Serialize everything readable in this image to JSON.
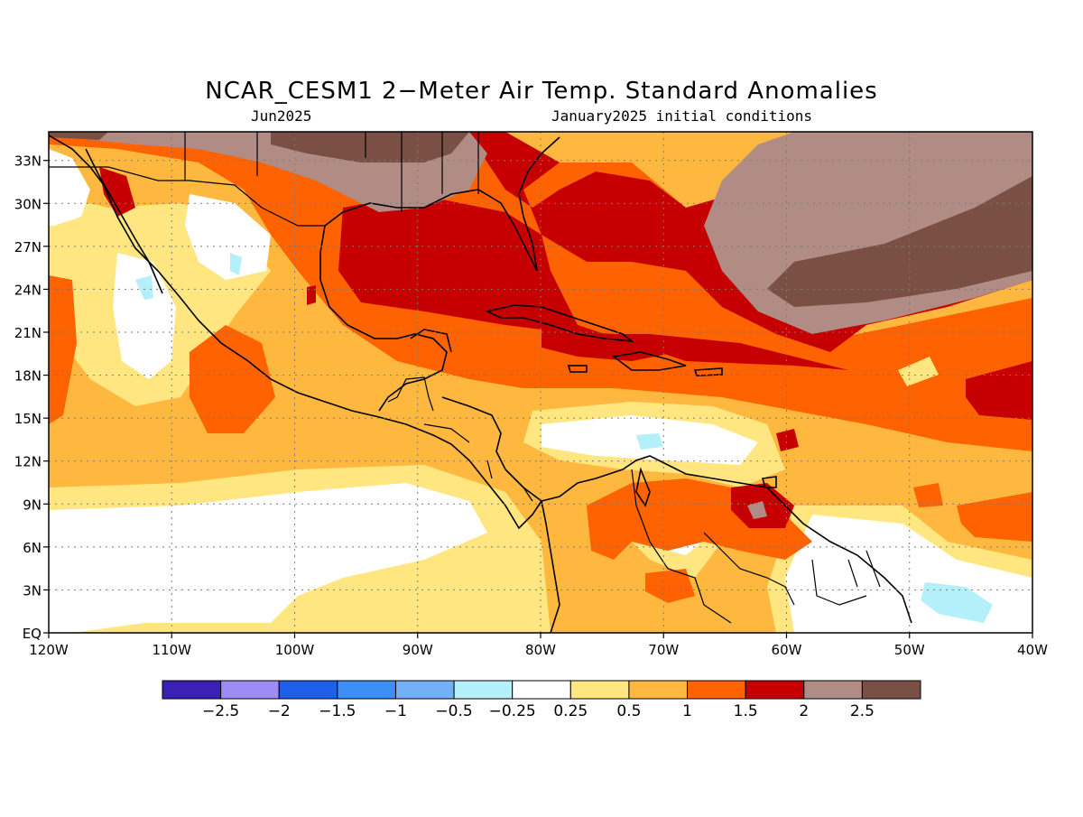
{
  "title": "NCAR_CESM1 2−Meter Air Temp. Standard Anomalies",
  "valid_month": "Jun2025",
  "initial_conditions": "January2025 initial conditions",
  "map": {
    "lon_labels": [
      "120W",
      "110W",
      "100W",
      "90W",
      "80W",
      "70W",
      "60W",
      "50W",
      "40W"
    ],
    "lat_labels": [
      "EQ",
      "3N",
      "6N",
      "9N",
      "12N",
      "15N",
      "18N",
      "21N",
      "24N",
      "27N",
      "30N",
      "33N"
    ],
    "lon_range": [
      -120,
      -40
    ],
    "lat_range": [
      0,
      35
    ],
    "grid": "dotted"
  },
  "legend": {
    "colors": [
      "#3a20b4",
      "#9d8cf5",
      "#2060e8",
      "#3d8ef6",
      "#72b1f6",
      "#b4f0fa",
      "#ffffff",
      "#ffe680",
      "#ffb83f",
      "#ff6200",
      "#c60000",
      "#b08c84",
      "#7a4f44"
    ],
    "labels": [
      "−2.5",
      "−2",
      "−1.5",
      "−1",
      "−0.5",
      "−0.25",
      "0.25",
      "0.5",
      "1",
      "1.5",
      "2",
      "2.5"
    ]
  },
  "palette": {
    "white": "#ffffff",
    "yellow": "#ffe680",
    "orange_light": "#ffb83f",
    "orange": "#ff6200",
    "red": "#c60000",
    "brown_light": "#b08c84",
    "brown_dark": "#7a4f44",
    "cyan": "#b4f0fa"
  }
}
